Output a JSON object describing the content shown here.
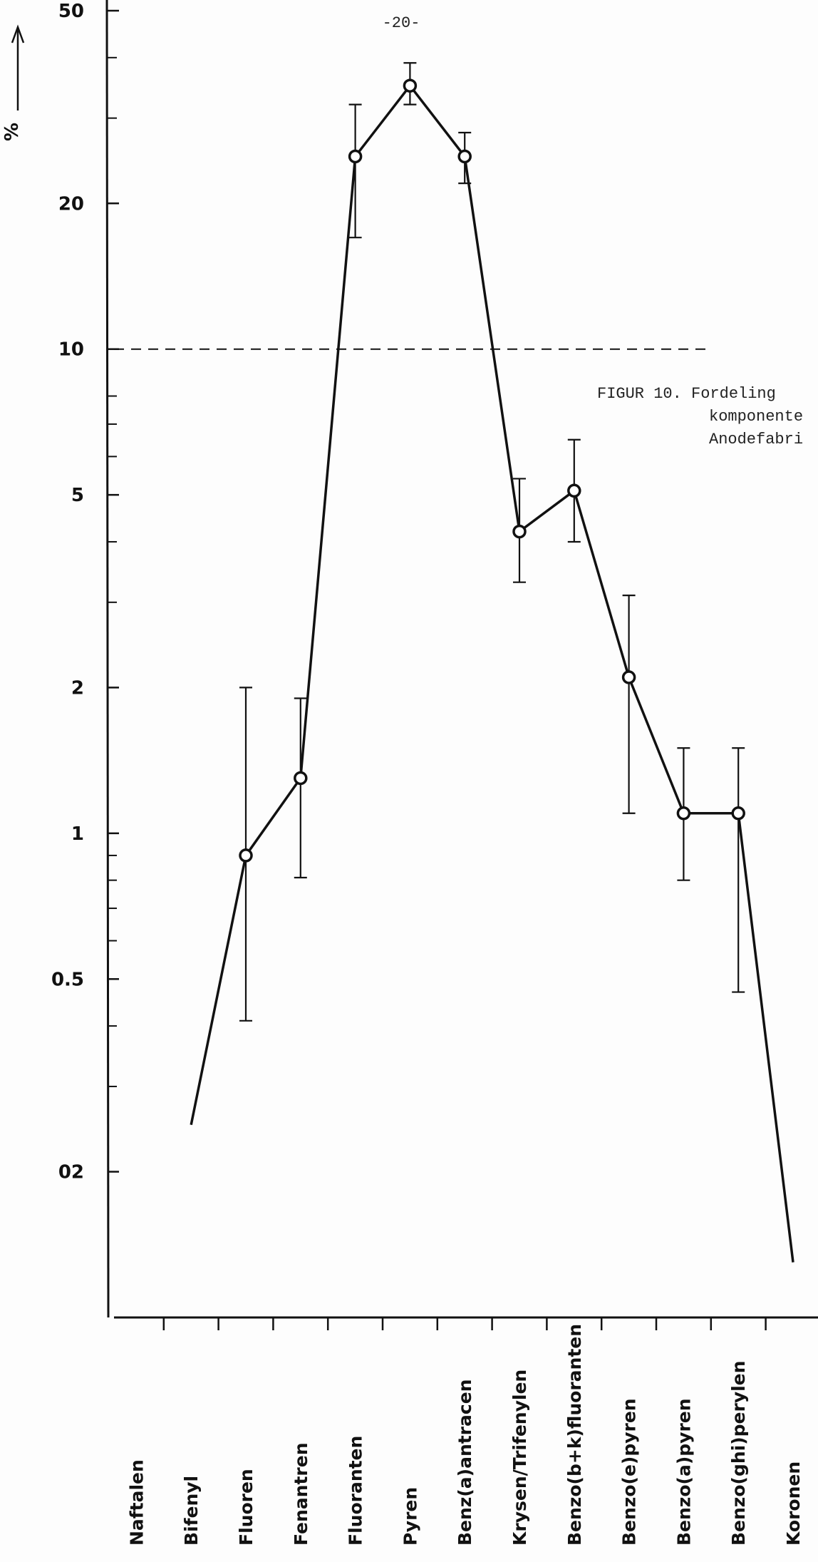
{
  "page_number": "-20-",
  "caption": [
    "FIGUR 10. Fordeling",
    "komponente",
    "Anodefabri"
  ],
  "chart_data": {
    "type": "line",
    "y_label": "%",
    "categories": [
      "Naftalen",
      "Bifenyl",
      "Fluoren",
      "Fenantren",
      "Fluoranten",
      "Pyren",
      "Benz(a)antracen",
      "Krysen/Trifenylen",
      "Benzo(b+k)fluoranten",
      "Benzo(e)pyren",
      "Benzo(a)pyren",
      "Benzo(ghi)perylen",
      "Koronen"
    ],
    "values": [
      null,
      0.25,
      0.9,
      1.3,
      25,
      35,
      25,
      4.2,
      5.1,
      2.1,
      1.1,
      1.1,
      0.13
    ],
    "error_low": [
      null,
      null,
      0.41,
      0.81,
      17,
      32,
      22,
      3.3,
      4.0,
      1.1,
      0.8,
      0.47,
      null
    ],
    "error_high": [
      null,
      null,
      2.0,
      1.9,
      32,
      39,
      28,
      5.4,
      6.5,
      3.1,
      1.5,
      1.5,
      null
    ],
    "color": "#111111",
    "log_y": true,
    "ylim": [
      0.1,
      50
    ],
    "yticks": [
      50,
      20,
      10,
      5,
      2,
      1,
      0.5,
      {
        "value": 0.2,
        "label": "02"
      }
    ],
    "yticks_minor": [
      40,
      30,
      8,
      7,
      6,
      4,
      3,
      0.9,
      0.8,
      0.7,
      0.6,
      0.4,
      0.3
    ],
    "reference_line": 10
  }
}
